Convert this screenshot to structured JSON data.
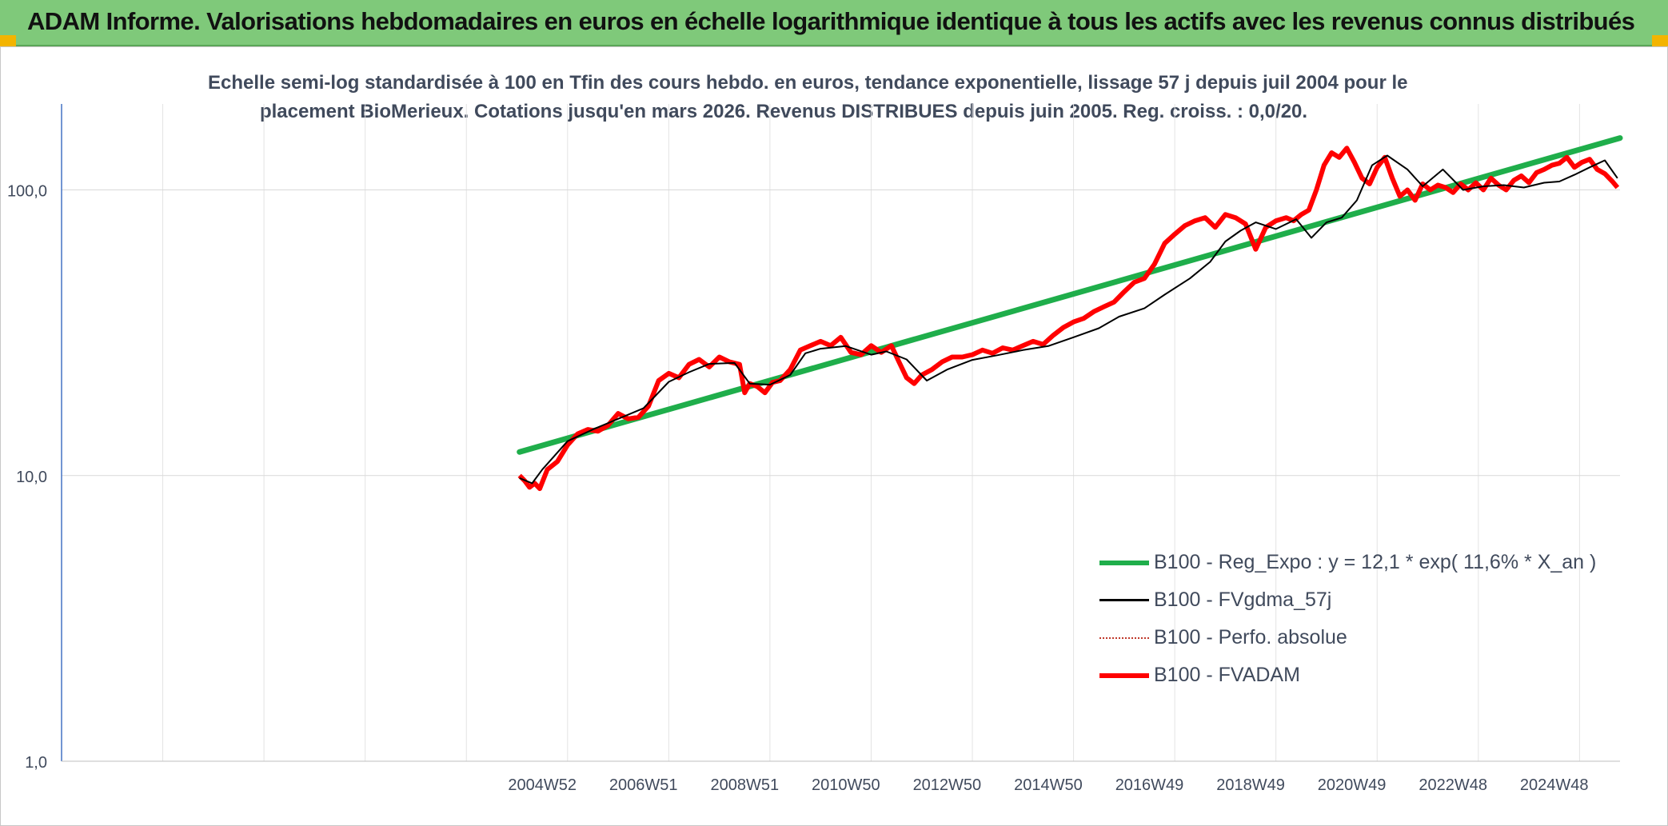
{
  "header": {
    "title": "ADAM Informe. Valorisations hebdomadaires en euros en échelle logarithmique identique à tous les actifs avec les revenus connus distribués",
    "background": "#7fc97a",
    "corner_color": "#f3b400"
  },
  "chart_data": {
    "type": "line",
    "title_lines": [
      "Echelle semi-log standardisée à 100 en Tfin des cours hebdo. en euros, tendance exponentielle, lissage 57 j depuis juil 2004 pour le",
      "placement BioMerieux. Cotations jusqu'en mars 2026. Revenus DISTRIBUES depuis juin 2005. Reg. croiss. : 0,0/20."
    ],
    "y_scale": "log",
    "ylim": [
      1,
      200
    ],
    "y_ticks": [
      {
        "value": 1,
        "label": "1,0"
      },
      {
        "value": 10,
        "label": "10,0"
      },
      {
        "value": 100,
        "label": "100,0"
      }
    ],
    "x_range": [
      1995.5,
      2026.3
    ],
    "x_tick_labels": [
      "2004W52",
      "2006W51",
      "2008W51",
      "2010W50",
      "2012W50",
      "2014W50",
      "2016W49",
      "2018W49",
      "2020W49",
      "2022W48",
      "2024W48"
    ],
    "x_tick_positions": [
      2005,
      2007,
      2009,
      2011,
      2013,
      2015,
      2017,
      2019,
      2021,
      2023,
      2025
    ],
    "gridlines": true,
    "legend_position": "bottom-right",
    "series": [
      {
        "name": "B100 - Reg_Expo : y = 12,1 * exp( 11,6% *  X_an )",
        "color": "#1fae4b",
        "style": "solid-thick",
        "x": [
          2004.55,
          2026.3
        ],
        "y": [
          12.1,
          152
        ]
      },
      {
        "name": "B100 - FVgdma_57j",
        "color": "#000000",
        "style": "solid-thin",
        "x": [
          2004.55,
          2004.8,
          2005.0,
          2005.5,
          2006.0,
          2006.5,
          2007.0,
          2007.5,
          2007.9,
          2008.3,
          2008.8,
          2009.1,
          2009.5,
          2009.9,
          2010.2,
          2010.5,
          2011.0,
          2011.5,
          2011.8,
          2012.2,
          2012.6,
          2013.0,
          2013.5,
          2014.0,
          2014.5,
          2015.0,
          2015.5,
          2016.0,
          2016.4,
          2016.9,
          2017.3,
          2017.8,
          2018.2,
          2018.5,
          2018.8,
          2019.1,
          2019.5,
          2019.9,
          2020.2,
          2020.5,
          2020.8,
          2021.1,
          2021.4,
          2021.7,
          2022.1,
          2022.4,
          2022.8,
          2023.2,
          2023.6,
          2024.0,
          2024.4,
          2024.8,
          2025.1,
          2025.4,
          2025.7,
          2026.0,
          2026.25
        ],
        "y": [
          9.8,
          9.4,
          10.5,
          13.2,
          14.5,
          15.8,
          17.2,
          21.3,
          23.0,
          24.6,
          24.8,
          21.0,
          20.8,
          22.5,
          26.8,
          27.8,
          28.4,
          26.5,
          27.2,
          25.5,
          21.5,
          23.5,
          25.4,
          26.4,
          27.5,
          28.4,
          30.5,
          32.8,
          36.0,
          38.5,
          43.0,
          49.0,
          56.0,
          66.0,
          72.0,
          77.0,
          73.0,
          79.0,
          68.0,
          77.0,
          80.0,
          92.0,
          122.0,
          132.0,
          118.0,
          103.0,
          118.0,
          100.0,
          103.0,
          104.0,
          102.0,
          106.0,
          107.0,
          113.0,
          120.0,
          127.0,
          110.0
        ]
      },
      {
        "name": "B100 - Perfo. absolue",
        "color": "#c0392b",
        "style": "dotted"
      },
      {
        "name": "B100 - FVADAM",
        "color": "#ff0000",
        "style": "solid-thick",
        "x": [
          2004.55,
          2004.65,
          2004.75,
          2004.85,
          2004.95,
          2005.1,
          2005.3,
          2005.5,
          2005.7,
          2005.9,
          2006.1,
          2006.3,
          2006.5,
          2006.7,
          2006.9,
          2007.1,
          2007.3,
          2007.5,
          2007.7,
          2007.9,
          2008.1,
          2008.3,
          2008.5,
          2008.7,
          2008.9,
          2009.0,
          2009.1,
          2009.25,
          2009.4,
          2009.55,
          2009.7,
          2009.9,
          2010.1,
          2010.3,
          2010.5,
          2010.7,
          2010.9,
          2011.1,
          2011.3,
          2011.5,
          2011.7,
          2011.9,
          2012.05,
          2012.2,
          2012.35,
          2012.5,
          2012.7,
          2012.9,
          2013.1,
          2013.3,
          2013.5,
          2013.7,
          2013.9,
          2014.1,
          2014.3,
          2014.5,
          2014.7,
          2014.9,
          2015.1,
          2015.3,
          2015.5,
          2015.7,
          2015.9,
          2016.1,
          2016.3,
          2016.5,
          2016.7,
          2016.9,
          2017.1,
          2017.3,
          2017.5,
          2017.7,
          2017.9,
          2018.1,
          2018.3,
          2018.5,
          2018.7,
          2018.9,
          2019.1,
          2019.3,
          2019.5,
          2019.7,
          2019.85,
          2020.0,
          2020.15,
          2020.3,
          2020.45,
          2020.6,
          2020.75,
          2020.9,
          2021.05,
          2021.2,
          2021.35,
          2021.5,
          2021.65,
          2021.8,
          2021.95,
          2022.1,
          2022.25,
          2022.4,
          2022.55,
          2022.7,
          2022.85,
          2023.0,
          2023.15,
          2023.3,
          2023.45,
          2023.6,
          2023.75,
          2023.9,
          2024.05,
          2024.2,
          2024.35,
          2024.5,
          2024.65,
          2024.8,
          2024.95,
          2025.1,
          2025.25,
          2025.4,
          2025.55,
          2025.7,
          2025.85,
          2026.0,
          2026.15,
          2026.25
        ],
        "y": [
          10.0,
          9.6,
          9.1,
          9.4,
          9.0,
          10.5,
          11.2,
          12.8,
          14.0,
          14.5,
          14.3,
          15.0,
          16.5,
          15.8,
          16.0,
          17.5,
          21.5,
          22.8,
          22.0,
          24.5,
          25.5,
          24.0,
          26.0,
          25.0,
          24.5,
          19.5,
          21.0,
          20.5,
          19.5,
          21.2,
          21.5,
          23.5,
          27.5,
          28.5,
          29.5,
          28.5,
          30.5,
          27.0,
          26.5,
          28.5,
          27.0,
          28.5,
          25.0,
          22.0,
          21.0,
          22.5,
          23.5,
          25.0,
          26.0,
          26.0,
          26.5,
          27.5,
          26.8,
          28.0,
          27.5,
          28.5,
          29.5,
          28.8,
          31.0,
          33.0,
          34.5,
          35.5,
          37.5,
          39.0,
          40.5,
          44.0,
          47.5,
          49.0,
          55.0,
          65.0,
          70.0,
          75.0,
          78.0,
          80.0,
          74.0,
          82.0,
          80.0,
          76.0,
          62.0,
          74.0,
          78.0,
          80.0,
          78.0,
          82.0,
          85.0,
          100.0,
          122.0,
          135.0,
          130.0,
          140.0,
          125.0,
          110.0,
          105.0,
          120.0,
          130.0,
          110.0,
          95.0,
          100.0,
          92.0,
          105.0,
          100.0,
          104.0,
          102.0,
          98.0,
          105.0,
          100.0,
          106.0,
          100.0,
          110.0,
          104.0,
          100.0,
          108.0,
          112.0,
          106.0,
          115.0,
          118.0,
          122.0,
          124.0,
          130.0,
          120.0,
          125.0,
          128.0,
          118.0,
          114.0,
          107.0,
          102.0
        ]
      }
    ]
  }
}
